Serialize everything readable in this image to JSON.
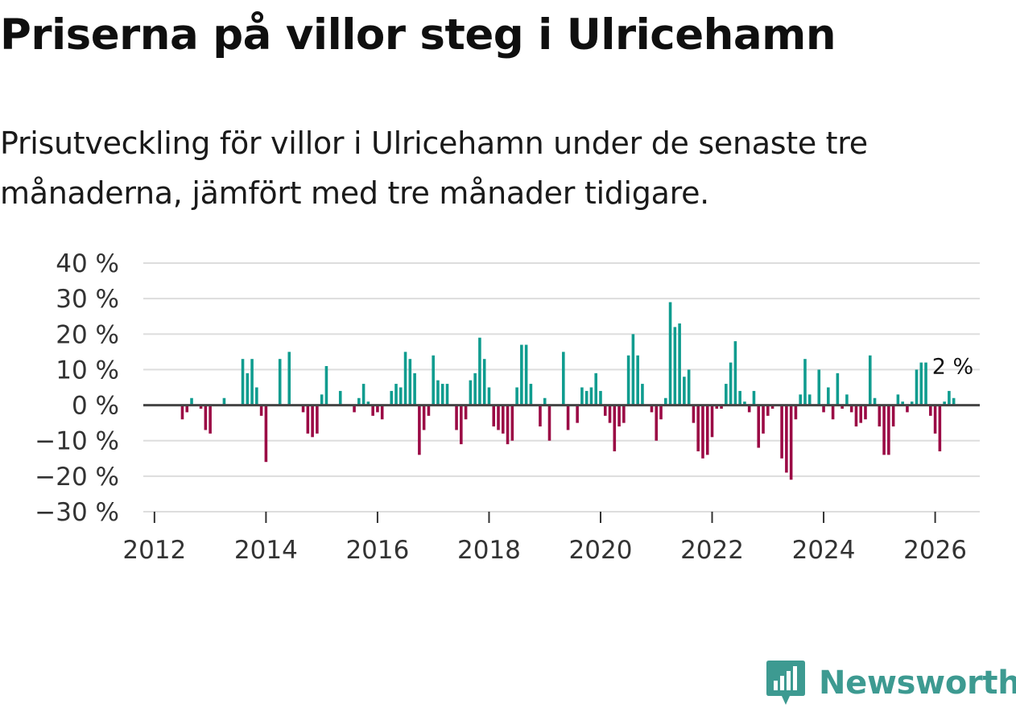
{
  "title": "Priserna på villor steg i Ulricehamn",
  "subtitle_lines": [
    "Prisutveckling för villor i Ulricehamn under de senaste tre",
    "månaderna, jämfört med tre månader tidigare."
  ],
  "brand": {
    "name": "Newsworthy",
    "icon": "newsworthy-logo-icon"
  },
  "colors": {
    "positive": "#0f9c8f",
    "negative": "#9b0a45",
    "grid": "#dddddd",
    "zero_line": "#444444",
    "brand": "#3d9a91"
  },
  "chart_data": {
    "type": "bar",
    "title": "Priserna på villor steg i Ulricehamn",
    "xlabel": "",
    "ylabel": "",
    "ylim": [
      -30,
      40
    ],
    "xlim": [
      2011.8,
      2026.8
    ],
    "y_ticks": [
      {
        "value": 40,
        "label": "40 %"
      },
      {
        "value": 30,
        "label": "30 %"
      },
      {
        "value": 20,
        "label": "20 %"
      },
      {
        "value": 10,
        "label": "10 %"
      },
      {
        "value": 0,
        "label": "0 %"
      },
      {
        "value": -10,
        "label": "−10 %"
      },
      {
        "value": -20,
        "label": "−20 %"
      },
      {
        "value": -30,
        "label": "−30 %"
      }
    ],
    "x_ticks": [
      {
        "value": 2012,
        "label": "2012"
      },
      {
        "value": 2014,
        "label": "2014"
      },
      {
        "value": 2016,
        "label": "2016"
      },
      {
        "value": 2018,
        "label": "2018"
      },
      {
        "value": 2020,
        "label": "2020"
      },
      {
        "value": 2022,
        "label": "2022"
      },
      {
        "value": 2024,
        "label": "2024"
      },
      {
        "value": 2026,
        "label": "2026"
      }
    ],
    "start_year": 2012.5,
    "step_months": 1,
    "values": [
      -4,
      -2,
      2,
      0,
      -1,
      -7,
      -8,
      0,
      0,
      2,
      0,
      0,
      0,
      13,
      9,
      13,
      5,
      -3,
      -16,
      0,
      0,
      13,
      0,
      15,
      0,
      0,
      -2,
      -8,
      -9,
      -8,
      3,
      11,
      0,
      0,
      4,
      0,
      0,
      -2,
      2,
      6,
      1,
      -3,
      -2,
      -4,
      0,
      4,
      6,
      5,
      15,
      13,
      9,
      -14,
      -7,
      -3,
      14,
      7,
      6,
      6,
      0,
      -7,
      -11,
      -4,
      7,
      9,
      19,
      13,
      5,
      -6,
      -7,
      -8,
      -11,
      -10,
      5,
      17,
      17,
      6,
      0,
      -6,
      2,
      -10,
      0,
      0,
      15,
      -7,
      0,
      -5,
      5,
      4,
      5,
      9,
      4,
      -3,
      -5,
      -13,
      -6,
      -5,
      14,
      20,
      14,
      6,
      0,
      -2,
      -10,
      -4,
      2,
      29,
      22,
      23,
      8,
      10,
      -5,
      -13,
      -15,
      -14,
      -9,
      -1,
      -1,
      6,
      12,
      18,
      4,
      1,
      -2,
      4,
      -12,
      -8,
      -3,
      -1,
      0,
      -15,
      -19,
      -21,
      -4,
      3,
      13,
      3,
      0,
      10,
      -2,
      5,
      -4,
      9,
      -1,
      3,
      -2,
      -6,
      -5,
      -4,
      14,
      2,
      -6,
      -14,
      -14,
      -6,
      3,
      1,
      -2,
      1,
      10,
      12,
      12,
      -3,
      -8,
      -13,
      1,
      4,
      2
    ],
    "last_value_label": "2 %"
  }
}
